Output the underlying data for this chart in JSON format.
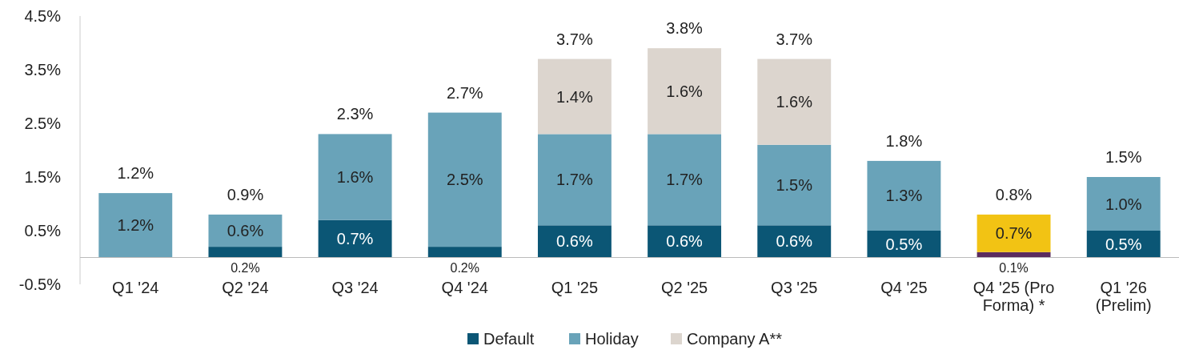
{
  "chart_data": {
    "type": "bar",
    "stacked": true,
    "categories": [
      "Q1 '24",
      "Q2 '24",
      "Q3 '24",
      "Q4 '24",
      "Q1 '25",
      "Q2 '25",
      "Q3 '25",
      "Q4 '25",
      "Q4 '25 (Pro Forma) *",
      "Q1 '26 (Prelim)"
    ],
    "ylim": [
      -0.5,
      4.5
    ],
    "yticks": [
      {
        "value": -0.5,
        "label": "-0.5%"
      },
      {
        "value": 0.5,
        "label": "0.5%"
      },
      {
        "value": 1.5,
        "label": "1.5%"
      },
      {
        "value": 2.5,
        "label": "2.5%"
      },
      {
        "value": 3.5,
        "label": "3.5%"
      },
      {
        "value": 4.5,
        "label": "4.5%"
      }
    ],
    "series": [
      {
        "name": "Default",
        "color": "#0b5675",
        "colors": [
          "#0b5675",
          "#0b5675",
          "#0b5675",
          "#0b5675",
          "#0b5675",
          "#0b5675",
          "#0b5675",
          "#0b5675",
          "#5b2c5e",
          "#0b5675"
        ],
        "values": [
          0,
          0.2,
          0.7,
          0.2,
          0.6,
          0.6,
          0.6,
          0.5,
          0.1,
          0.5
        ],
        "value_labels": [
          null,
          "0.2%",
          "0.7%",
          "0.2%",
          "0.6%",
          "0.6%",
          "0.6%",
          "0.5%",
          "0.1%",
          "0.5%"
        ]
      },
      {
        "name": "Holiday",
        "color": "#69a3b9",
        "colors": [
          "#69a3b9",
          "#69a3b9",
          "#69a3b9",
          "#69a3b9",
          "#69a3b9",
          "#69a3b9",
          "#69a3b9",
          "#69a3b9",
          "#f2c314",
          "#69a3b9"
        ],
        "values": [
          1.2,
          0.6,
          1.6,
          2.5,
          1.7,
          1.7,
          1.5,
          1.3,
          0.7,
          1.0
        ],
        "value_labels": [
          "1.2%",
          "0.6%",
          "1.6%",
          "2.5%",
          "1.7%",
          "1.7%",
          "1.5%",
          "1.3%",
          "0.7%",
          "1.0%"
        ]
      },
      {
        "name": "Company A**",
        "color": "#dcd5ce",
        "values": [
          null,
          null,
          null,
          null,
          1.4,
          1.6,
          1.6,
          null,
          null,
          null
        ],
        "value_labels": [
          null,
          null,
          null,
          null,
          "1.4%",
          "1.6%",
          "1.6%",
          null,
          null,
          null
        ]
      }
    ],
    "totals": [
      "1.2%",
      "0.9%",
      "2.3%",
      "2.7%",
      "3.7%",
      "3.8%",
      "3.7%",
      "1.8%",
      "0.8%",
      "1.5%"
    ],
    "legend": "bottom",
    "grid": false
  }
}
